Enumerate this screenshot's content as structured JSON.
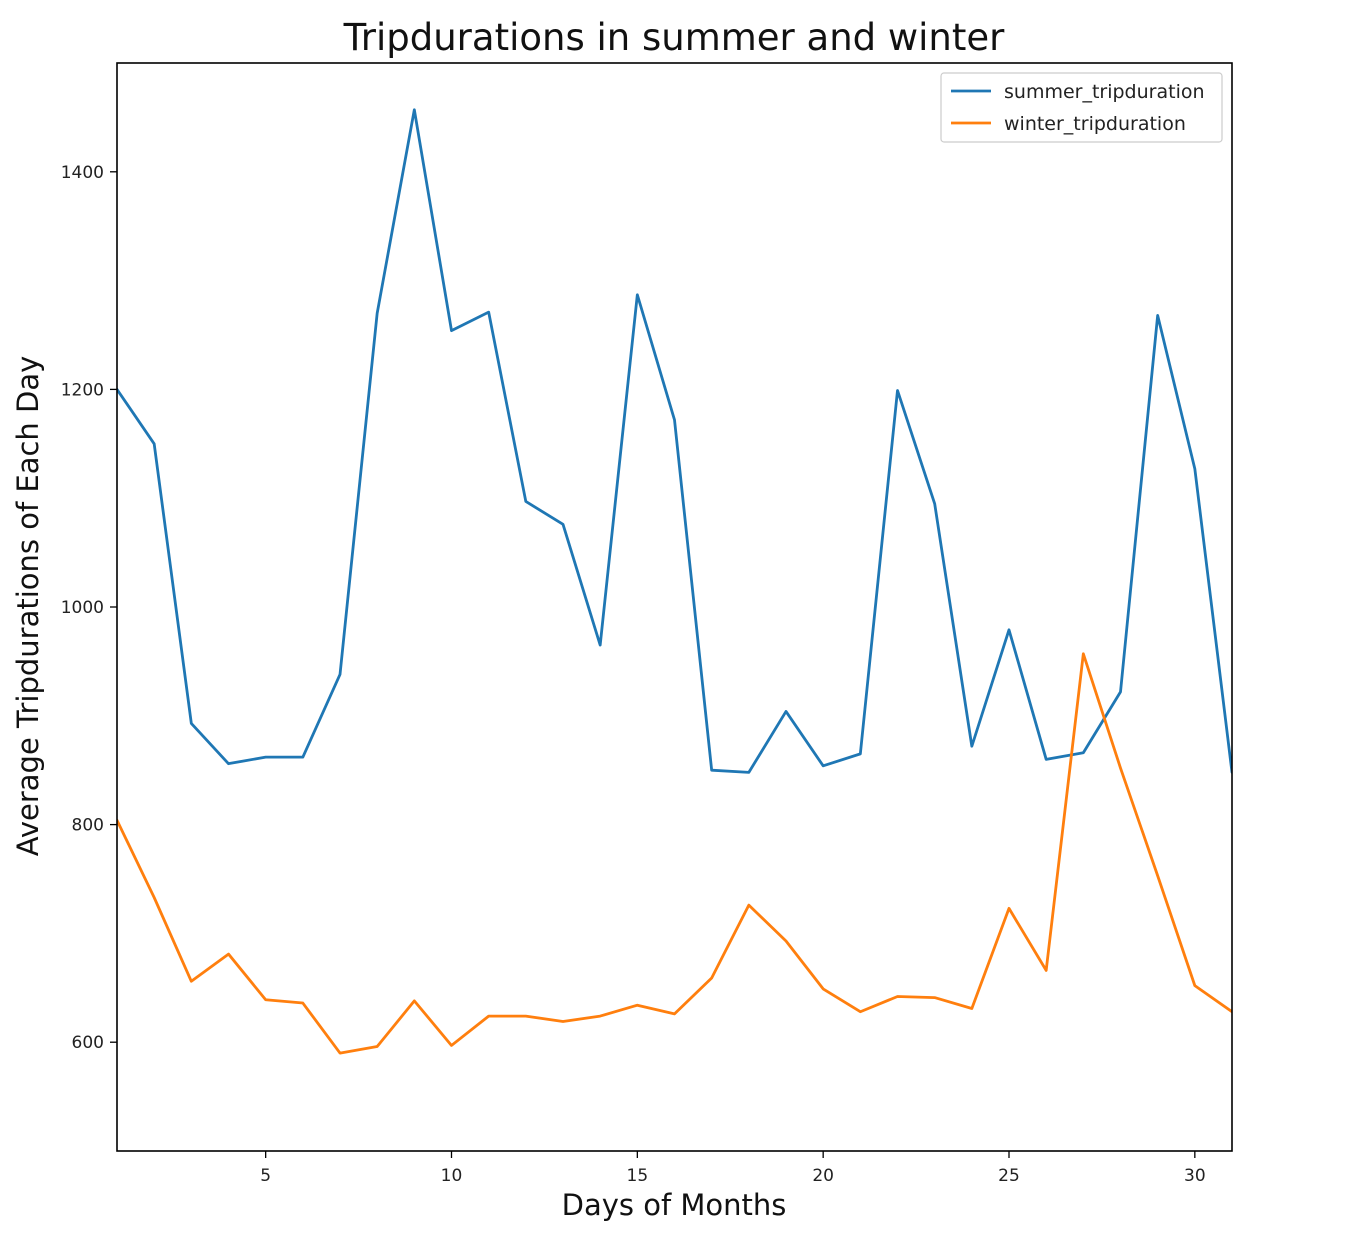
{
  "chart_data": {
    "type": "line",
    "title": "Tripdurations in summer and winter",
    "xlabel": "Days of Months",
    "ylabel": "Average Tripdurations of Each Day",
    "xlim": [
      1,
      31
    ],
    "ylim": [
      500,
      1500
    ],
    "xticks": [
      5,
      10,
      15,
      20,
      25,
      30
    ],
    "yticks": [
      600,
      800,
      1000,
      1200,
      1400
    ],
    "grid": false,
    "legend_position": "top-right",
    "x": [
      1,
      2,
      3,
      4,
      5,
      6,
      7,
      8,
      9,
      10,
      11,
      12,
      13,
      14,
      15,
      16,
      17,
      18,
      19,
      20,
      21,
      22,
      23,
      24,
      25,
      26,
      27,
      28,
      29,
      30,
      31
    ],
    "series": [
      {
        "name": "summer_tripduration",
        "color": "#1f77b4",
        "values": [
          1200,
          1150,
          893,
          856,
          862,
          862,
          938,
          1270,
          1457,
          1254,
          1271,
          1097,
          1076,
          965,
          1287,
          1172,
          850,
          848,
          904,
          854,
          865,
          1199,
          1095,
          872,
          979,
          860,
          866,
          922,
          1268,
          1127,
          848
        ]
      },
      {
        "name": "winter_tripduration",
        "color": "#ff7f0e",
        "values": [
          804,
          733,
          656,
          681,
          639,
          636,
          590,
          596,
          638,
          597,
          624,
          624,
          619,
          624,
          634,
          626,
          659,
          726,
          693,
          649,
          628,
          642,
          641,
          631,
          723,
          666,
          957,
          852,
          753,
          652,
          628
        ]
      }
    ]
  }
}
